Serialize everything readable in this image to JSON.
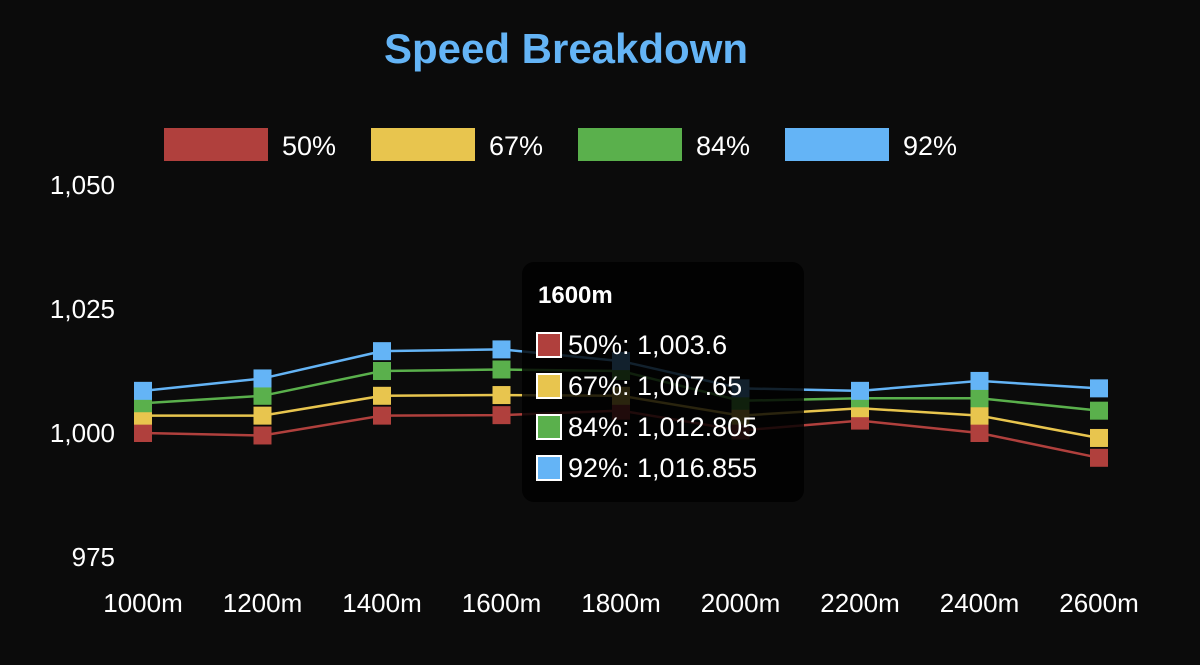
{
  "chart_data": {
    "type": "line",
    "title": "Speed Breakdown",
    "xlabel": "",
    "ylabel": "",
    "categories": [
      "1000m",
      "1200m",
      "1400m",
      "1600m",
      "1800m",
      "2000m",
      "2200m",
      "2400m",
      "2600m"
    ],
    "ylim": [
      975,
      1050
    ],
    "yticks": [
      975,
      1000,
      1025,
      1050
    ],
    "ytick_labels": [
      "975",
      "1,000",
      "1,025",
      "1,050"
    ],
    "legend_position": "top",
    "grid": false,
    "series": [
      {
        "name": "50%",
        "color": "#b0403d",
        "values": [
          1000.0,
          999.5,
          1003.5,
          1003.6,
          1004.5,
          1000.5,
          1002.5,
          1000.0,
          995.0
        ]
      },
      {
        "name": "67%",
        "color": "#e8c54e",
        "values": [
          1003.5,
          1003.5,
          1007.5,
          1007.65,
          1007.5,
          1003.5,
          1005.0,
          1003.5,
          999.0
        ]
      },
      {
        "name": "84%",
        "color": "#5ab04c",
        "values": [
          1006.0,
          1007.5,
          1012.5,
          1012.805,
          1012.5,
          1006.5,
          1007.0,
          1007.0,
          1004.5
        ]
      },
      {
        "name": "92%",
        "color": "#64b4f6",
        "values": [
          1008.5,
          1011.0,
          1016.5,
          1016.855,
          1014.5,
          1009.0,
          1008.5,
          1010.5,
          1009.0
        ]
      }
    ],
    "tooltip": {
      "title": "1600m",
      "rows": [
        {
          "label": "50%: 1,003.6",
          "color": "#b0403d"
        },
        {
          "label": "67%: 1,007.65",
          "color": "#e8c54e"
        },
        {
          "label": "84%: 1,012.805",
          "color": "#5ab04c"
        },
        {
          "label": "92%: 1,016.855",
          "color": "#64b4f6"
        }
      ]
    },
    "colors": {
      "background": "#0b0b0b",
      "title": "#64b4f6",
      "text": "#ffffff"
    }
  }
}
